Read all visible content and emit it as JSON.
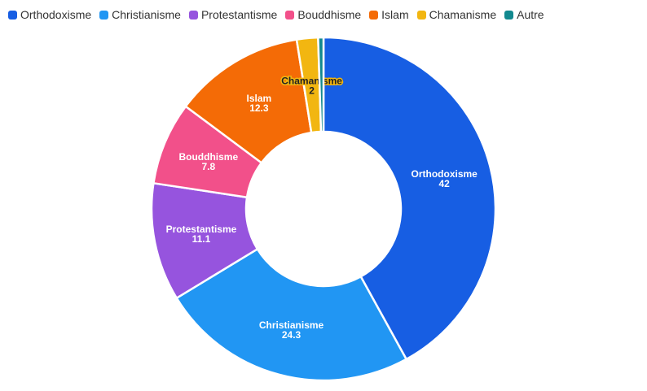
{
  "chart_data": {
    "type": "pie",
    "donut": true,
    "legend_position": "top-left",
    "slices": [
      {
        "label": "Orthodoxisme",
        "value": 42,
        "color": "#175EE3"
      },
      {
        "label": "Christianisme",
        "value": 24.3,
        "color": "#2196F3"
      },
      {
        "label": "Protestantisme",
        "value": 11.1,
        "color": "#9654DE"
      },
      {
        "label": "Bouddhisme",
        "value": 7.8,
        "color": "#F2508A"
      },
      {
        "label": "Islam",
        "value": 12.3,
        "color": "#F46B06"
      },
      {
        "label": "Chamanisme",
        "value": 2,
        "color": "#F2B611"
      },
      {
        "label": "Autre",
        "value": 0.5,
        "color": "#12898F"
      }
    ]
  }
}
